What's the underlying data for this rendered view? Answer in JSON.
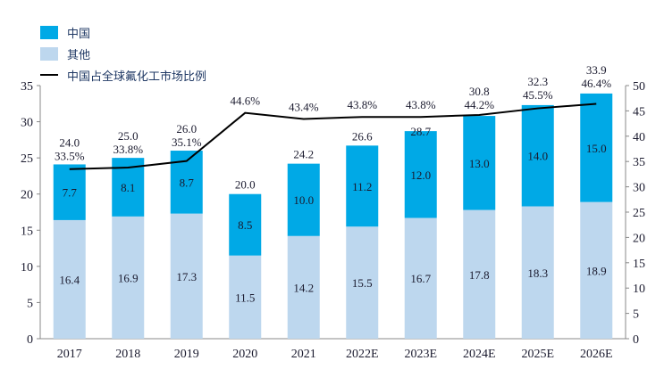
{
  "chart_data": {
    "type": "bar",
    "stacked": true,
    "categories": [
      "2017",
      "2018",
      "2019",
      "2020",
      "2021",
      "2022E",
      "2023E",
      "2024E",
      "2025E",
      "2026E"
    ],
    "series": [
      {
        "name": "其他",
        "color": "#BDD7EE",
        "values": [
          16.4,
          16.9,
          17.3,
          11.5,
          14.2,
          15.5,
          16.7,
          17.8,
          18.3,
          18.9
        ]
      },
      {
        "name": "中国",
        "color": "#00A9E6",
        "values": [
          7.7,
          8.1,
          8.7,
          8.5,
          10.0,
          11.2,
          12.0,
          13.0,
          14.0,
          15.0
        ]
      }
    ],
    "totals": [
      "24.0",
      "25.0",
      "26.0",
      "20.0",
      "24.2",
      "26.6",
      "28.7",
      "30.8",
      "32.3",
      "33.9"
    ],
    "line": {
      "name": "中国占全球氟化工市场比例",
      "axis": "right",
      "color": "#000000",
      "values": [
        33.5,
        33.8,
        35.1,
        44.6,
        43.4,
        43.8,
        43.8,
        44.2,
        45.5,
        46.4
      ],
      "labels": [
        "33.5%",
        "33.8%",
        "35.1%",
        "44.6%",
        "43.4%",
        "43.8%",
        "43.8%",
        "44.2%",
        "45.5%",
        "46.4%"
      ]
    },
    "ylim": [
      0,
      35
    ],
    "yticks": [
      0,
      5,
      10,
      15,
      20,
      25,
      30,
      35
    ],
    "y2lim": [
      0,
      50
    ],
    "y2ticks": [
      0,
      5,
      10,
      15,
      20,
      25,
      30,
      35,
      40,
      45,
      50
    ],
    "legend_position": "top-left",
    "legend": [
      "中国",
      "其他",
      "中国占全球氟化工市场比例"
    ]
  }
}
